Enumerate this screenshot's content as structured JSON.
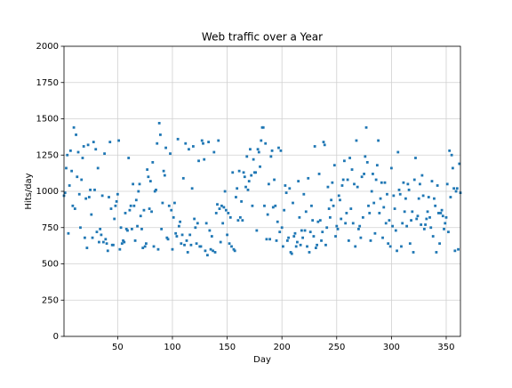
{
  "chart_data": {
    "type": "scatter",
    "title": "Web traffic over a Year",
    "xlabel": "Day",
    "ylabel": "Hits/day",
    "color": "#1f77b4",
    "grid": true,
    "xlim": [
      1,
      363
    ],
    "ylim": [
      0,
      2000
    ],
    "xticks": [
      50,
      100,
      150,
      200,
      250,
      300,
      350
    ],
    "yticks": [
      0,
      250,
      500,
      750,
      1000,
      1250,
      1500,
      1750,
      2000
    ],
    "x": [
      1,
      2,
      3,
      4,
      5,
      6,
      7,
      8,
      9,
      10,
      11,
      12,
      13,
      14,
      15,
      16,
      17,
      18,
      19,
      20,
      21,
      22,
      23,
      24,
      25,
      26,
      27,
      28,
      29,
      30,
      31,
      32,
      33,
      34,
      35,
      36,
      37,
      38,
      39,
      40,
      41,
      42,
      43,
      44,
      45,
      46,
      47,
      48,
      49,
      50,
      51,
      52,
      53,
      54,
      55,
      56,
      57,
      58,
      59,
      60,
      61,
      62,
      63,
      64,
      65,
      66,
      67,
      68,
      69,
      70,
      71,
      72,
      73,
      74,
      75,
      76,
      77,
      78,
      79,
      80,
      81,
      82,
      83,
      84,
      85,
      86,
      87,
      88,
      89,
      90,
      91,
      92,
      93,
      94,
      95,
      96,
      97,
      98,
      99,
      100,
      101,
      102,
      103,
      104,
      105,
      106,
      107,
      108,
      109,
      110,
      111,
      112,
      113,
      114,
      115,
      116,
      117,
      118,
      119,
      120,
      121,
      122,
      123,
      124,
      125,
      126,
      127,
      128,
      129,
      130,
      131,
      132,
      133,
      134,
      135,
      136,
      137,
      138,
      139,
      140,
      141,
      142,
      143,
      144,
      145,
      146,
      147,
      148,
      149,
      150,
      151,
      152,
      153,
      154,
      155,
      156,
      157,
      158,
      159,
      160,
      161,
      162,
      163,
      164,
      165,
      166,
      167,
      168,
      169,
      170,
      171,
      172,
      173,
      174,
      175,
      176,
      177,
      178,
      179,
      180,
      181,
      182,
      183,
      184,
      185,
      186,
      187,
      188,
      189,
      190,
      191,
      192,
      193,
      194,
      195,
      196,
      197,
      198,
      199,
      200,
      201,
      202,
      203,
      204,
      205,
      206,
      207,
      208,
      209,
      210,
      211,
      212,
      213,
      214,
      215,
      216,
      217,
      218,
      219,
      220,
      221,
      222,
      223,
      224,
      225,
      226,
      227,
      228,
      229,
      230,
      231,
      232,
      233,
      234,
      235,
      236,
      237,
      238,
      239,
      240,
      241,
      242,
      243,
      244,
      245,
      246,
      247,
      248,
      249,
      250,
      251,
      252,
      253,
      254,
      255,
      256,
      257,
      258,
      259,
      260,
      261,
      262,
      263,
      264,
      265,
      266,
      267,
      268,
      269,
      270,
      271,
      272,
      273,
      274,
      275,
      276,
      277,
      278,
      279,
      280,
      281,
      282,
      283,
      284,
      285,
      286,
      287,
      288,
      289,
      290,
      291,
      292,
      293,
      294,
      295,
      296,
      297,
      298,
      299,
      300,
      301,
      302,
      303,
      304,
      305,
      306,
      307,
      308,
      309,
      310,
      311,
      312,
      313,
      314,
      315,
      316,
      317,
      318,
      319,
      320,
      321,
      322,
      323,
      324,
      325,
      326,
      327,
      328,
      329,
      330,
      331,
      332,
      333,
      334,
      335,
      336,
      337,
      338,
      339,
      340,
      341,
      342,
      343,
      344,
      345,
      346,
      347,
      348,
      349,
      350,
      351,
      352,
      353,
      354,
      355,
      356,
      357,
      358,
      359,
      360,
      361,
      362,
      363
    ],
    "values": [
      970,
      990,
      1160,
      1250,
      710,
      1040,
      1280,
      1140,
      900,
      1440,
      880,
      1390,
      1100,
      1270,
      980,
      750,
      1080,
      1230,
      1310,
      680,
      950,
      610,
      1320,
      960,
      1010,
      840,
      680,
      1340,
      1010,
      1290,
      720,
      1160,
      650,
      740,
      700,
      970,
      650,
      1260,
      670,
      640,
      590,
      960,
      1340,
      880,
      630,
      630,
      810,
      900,
      930,
      980,
      1350,
      600,
      750,
      640,
      660,
      650,
      850,
      740,
      730,
      1230,
      870,
      900,
      740,
      1050,
      900,
      660,
      940,
      760,
      1000,
      1050,
      830,
      740,
      610,
      870,
      620,
      640,
      1150,
      1100,
      880,
      1070,
      860,
      1200,
      620,
      1000,
      1010,
      1330,
      600,
      1470,
      1390,
      740,
      920,
      1140,
      1110,
      1300,
      680,
      670,
      900,
      1260,
      870,
      600,
      820,
      920,
      710,
      690,
      1360,
      760,
      790,
      640,
      700,
      1090,
      630,
      1330,
      660,
      580,
      1290,
      700,
      630,
      1020,
      1310,
      810,
      750,
      640,
      780,
      1210,
      620,
      620,
      1350,
      1330,
      1220,
      590,
      780,
      560,
      1340,
      730,
      600,
      690,
      590,
      1270,
      580,
      850,
      910,
      1350,
      880,
      650,
      900,
      780,
      890,
      1000,
      870,
      700,
      850,
      640,
      820,
      620,
      1130,
      600,
      590,
      960,
      1020,
      800,
      1140,
      820,
      930,
      800,
      1130,
      1100,
      1030,
      1240,
      1010,
      1070,
      1290,
      1110,
      900,
      1220,
      1130,
      1130,
      730,
      1290,
      1270,
      1170,
      1350,
      1440,
      1440,
      900,
      1330,
      670,
      840,
      1050,
      670,
      1240,
      1280,
      890,
      1080,
      900,
      660,
      790,
      1300,
      720,
      1280,
      750,
      620,
      870,
      1040,
      990,
      660,
      680,
      1020,
      580,
      570,
      920,
      690,
      710,
      620,
      650,
      1070,
      820,
      630,
      730,
      680,
      980,
      730,
      860,
      620,
      1090,
      580,
      720,
      900,
      800,
      690,
      1310,
      610,
      630,
      790,
      1120,
      800,
      660,
      720,
      1340,
      1320,
      630,
      750,
      1030,
      880,
      820,
      940,
      1060,
      900,
      1180,
      690,
      760,
      740,
      970,
      940,
      810,
      1040,
      1080,
      1210,
      780,
      850,
      1080,
      660,
      1230,
      880,
      1150,
      780,
      1050,
      620,
      1350,
      1030,
      740,
      760,
      680,
      1100,
      820,
      1120,
      1240,
      1440,
      1200,
      900,
      850,
      660,
      1000,
      1120,
      920,
      710,
      1080,
      1180,
      1350,
      850,
      950,
      1060,
      680,
      890,
      1060,
      780,
      980,
      640,
      800,
      620,
      1160,
      760,
      970,
      880,
      730,
      590,
      1270,
      1010,
      980,
      620,
      780,
      1060,
      860,
      950,
      760,
      1050,
      1010,
      640,
      800,
      860,
      580,
      1080,
      1230,
      810,
      830,
      950,
      1050,
      770,
      1110,
      970,
      740,
      770,
      810,
      860,
      960,
      820,
      750,
      1070,
      690,
      950,
      900,
      580,
      1040,
      850,
      640,
      850,
      870,
      830,
      740,
      780,
      820,
      1050,
      720,
      1280,
      960,
      1250,
      1160,
      1020,
      590,
      1000,
      1020,
      600,
      1190,
      990
    ]
  }
}
